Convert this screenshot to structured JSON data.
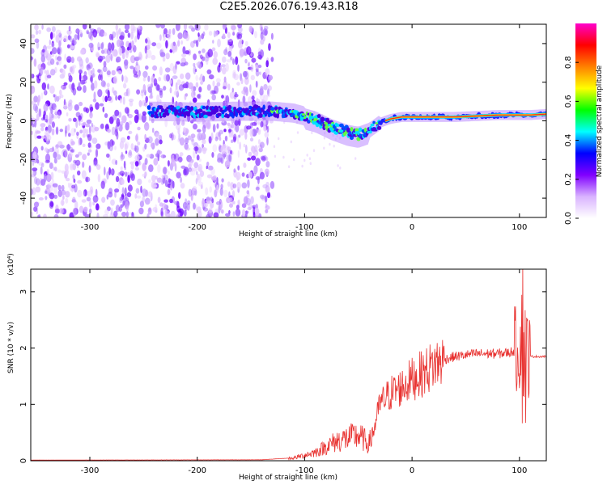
{
  "title": "C2E5.2026.076.19.43.R18",
  "chart_data": [
    {
      "type": "heatmap",
      "title": "C2E5.2026.076.19.43.R18",
      "xlabel": "Height of straight line (km)",
      "ylabel": "Frequency (Hz)",
      "xlim": [
        -355,
        125
      ],
      "ylim": [
        -50,
        50
      ],
      "x_ticks": [
        -300,
        -200,
        -100,
        0,
        100
      ],
      "y_ticks": [
        -40,
        -20,
        0,
        20,
        40
      ],
      "colorbar": {
        "label": "Normalized spectral amplitude",
        "range": [
          0,
          1
        ],
        "ticks": [
          "0.0",
          "0.2",
          "0.4",
          "0.6",
          "0.8"
        ],
        "colors": [
          "#ffffff",
          "#d9b3ff",
          "#8000ff",
          "#0000ff",
          "#00ffff",
          "#00ff00",
          "#ffff00",
          "#ff8000",
          "#ff0000",
          "#ff00cc"
        ]
      },
      "ridge": {
        "x": [
          -245,
          -200,
          -160,
          -130,
          -110,
          -90,
          -75,
          -60,
          -50,
          -40,
          -30,
          -20,
          -10,
          0,
          20,
          40,
          60,
          80,
          100,
          110,
          125
        ],
        "y": [
          5,
          4.5,
          5,
          5,
          4,
          1,
          -3,
          -6,
          -7,
          -5,
          -1,
          1,
          2,
          2,
          2,
          2,
          2.5,
          3,
          3,
          3,
          3.5
        ]
      }
    },
    {
      "type": "line",
      "xlabel": "Height of straight line (km)",
      "ylabel": "SNR (10 * v/v)",
      "multiplier": "(x10⁴)",
      "xlim": [
        -355,
        125
      ],
      "ylim": [
        0,
        3.4
      ],
      "x_ticks": [
        -300,
        -200,
        -100,
        0,
        100
      ],
      "y_ticks": [
        0,
        1,
        2,
        3
      ],
      "color": "#e8312f",
      "envelope": {
        "x": [
          -355,
          -140,
          -110,
          -100,
          -90,
          -80,
          -70,
          -60,
          -50,
          -40,
          -35,
          -30,
          -25,
          -20,
          -10,
          0,
          10,
          20,
          30,
          40,
          60,
          80,
          90,
          95,
          100,
          103,
          105,
          108,
          110,
          125
        ],
        "y": [
          0.01,
          0.015,
          0.05,
          0.1,
          0.15,
          0.25,
          0.35,
          0.4,
          0.45,
          0.3,
          0.6,
          1.0,
          1.1,
          1.2,
          1.3,
          1.45,
          1.55,
          1.7,
          1.8,
          1.85,
          1.9,
          1.9,
          1.92,
          1.95,
          2.0,
          2.2,
          2.0,
          1.9,
          1.85,
          1.85
        ]
      }
    }
  ]
}
